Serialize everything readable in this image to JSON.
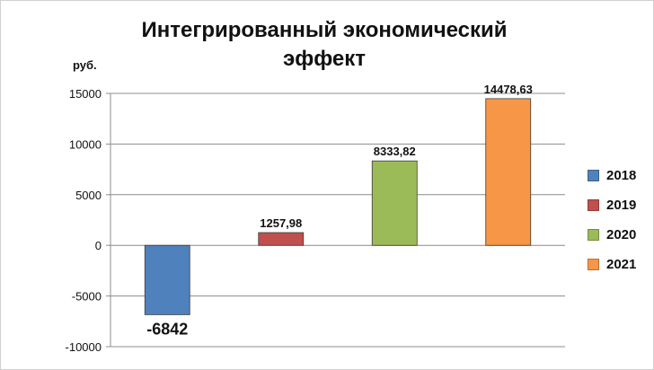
{
  "chart_data": {
    "type": "bar",
    "title": "Интегрированный экономический эффект",
    "title_lines": [
      "Интегрированный экономический",
      "эффект"
    ],
    "unit_label": "руб.",
    "categories": [
      "2018",
      "2019",
      "2020",
      "2021"
    ],
    "values": [
      -6842,
      1257.98,
      8333.82,
      14478.63
    ],
    "data_labels": [
      "-6842",
      "1257,98",
      "8333,82",
      "14478,63"
    ],
    "colors": [
      "#4f81bd",
      "#c0504d",
      "#9bbb59",
      "#f79646"
    ],
    "legend": [
      "2018",
      "2019",
      "2020",
      "2021"
    ],
    "legend_position": "right",
    "ylim": [
      -10000,
      15000
    ],
    "y_ticks": [
      15000,
      10000,
      5000,
      0,
      -5000,
      -10000
    ],
    "y_tick_labels": [
      "15000",
      "10000",
      "5000",
      "0",
      "-5000",
      "-10000"
    ],
    "grid": true
  }
}
